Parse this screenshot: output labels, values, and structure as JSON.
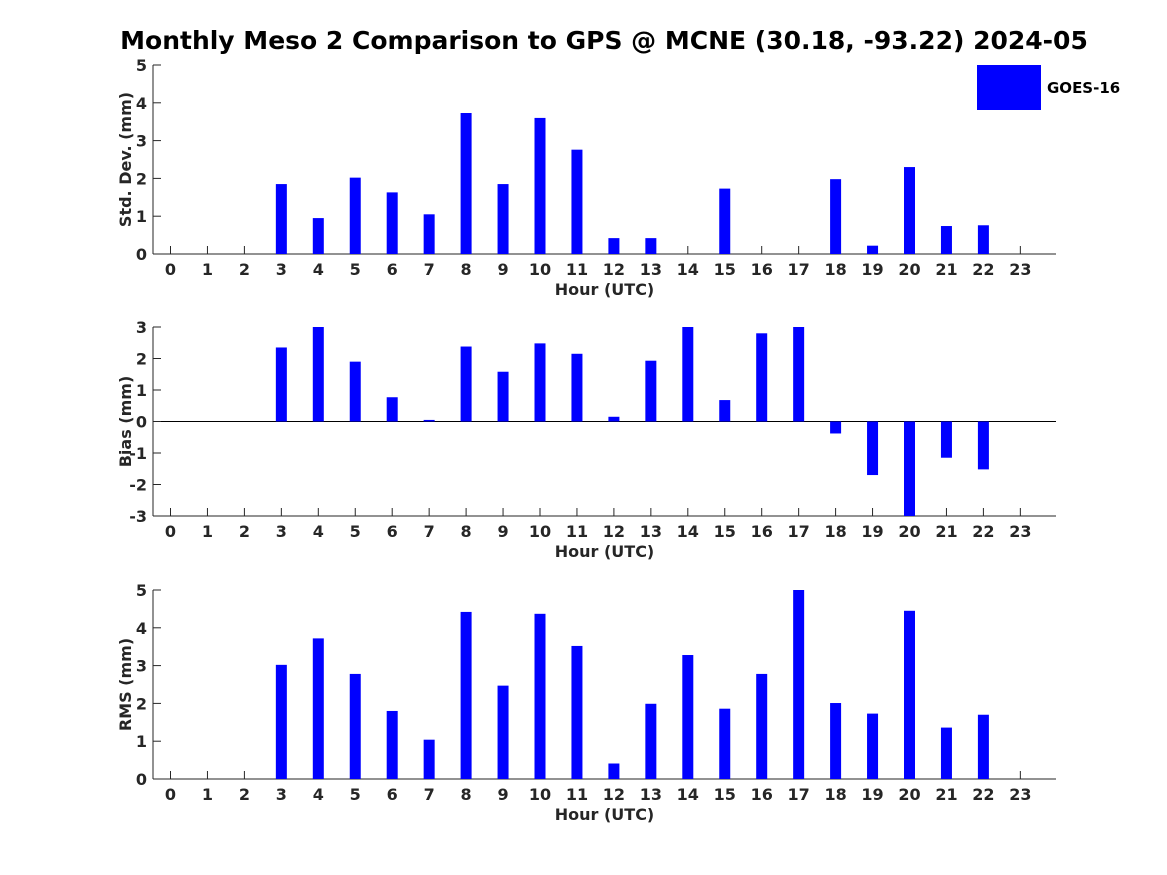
{
  "title": "Monthly Meso 2 Comparison to GPS @ MCNE (30.18, -93.22) 2024-05",
  "legend": {
    "label": "GOES-16",
    "color": "#0000ff"
  },
  "chart_data": [
    {
      "type": "bar",
      "xlabel": "Hour (UTC)",
      "ylabel": "Std. Dev. (mm)",
      "ylim": [
        0,
        5
      ],
      "yticks": [
        "0",
        "1",
        "2",
        "3",
        "4",
        "5"
      ],
      "categories": [
        "0",
        "1",
        "2",
        "3",
        "4",
        "5",
        "6",
        "7",
        "8",
        "9",
        "10",
        "11",
        "12",
        "13",
        "14",
        "15",
        "16",
        "17",
        "18",
        "19",
        "20",
        "21",
        "22",
        "23"
      ],
      "series": [
        {
          "name": "GOES-16",
          "values": [
            null,
            null,
            null,
            1.85,
            0.95,
            2.02,
            1.63,
            1.05,
            3.73,
            1.85,
            3.6,
            2.76,
            0.42,
            0.42,
            null,
            1.73,
            null,
            null,
            1.98,
            0.22,
            2.3,
            0.74,
            0.76,
            null
          ]
        }
      ]
    },
    {
      "type": "bar",
      "xlabel": "Hour (UTC)",
      "ylabel": "Bias (mm)",
      "ylim": [
        -3,
        3
      ],
      "yticks": [
        "-3",
        "-2",
        "-1",
        "0",
        "1",
        "2",
        "3"
      ],
      "categories": [
        "0",
        "1",
        "2",
        "3",
        "4",
        "5",
        "6",
        "7",
        "8",
        "9",
        "10",
        "11",
        "12",
        "13",
        "14",
        "15",
        "16",
        "17",
        "18",
        "19",
        "20",
        "21",
        "22",
        "23"
      ],
      "series": [
        {
          "name": "GOES-16",
          "values": [
            null,
            null,
            null,
            2.35,
            3.0,
            1.9,
            0.77,
            0.05,
            2.38,
            1.58,
            2.48,
            2.15,
            0.15,
            1.93,
            3.0,
            0.68,
            2.8,
            3.0,
            -0.38,
            -1.7,
            -3.0,
            -1.15,
            -1.52,
            null
          ]
        }
      ]
    },
    {
      "type": "bar",
      "xlabel": "Hour (UTC)",
      "ylabel": "RMS (mm)",
      "ylim": [
        0,
        5
      ],
      "yticks": [
        "0",
        "1",
        "2",
        "3",
        "4",
        "5"
      ],
      "categories": [
        "0",
        "1",
        "2",
        "3",
        "4",
        "5",
        "6",
        "7",
        "8",
        "9",
        "10",
        "11",
        "12",
        "13",
        "14",
        "15",
        "16",
        "17",
        "18",
        "19",
        "20",
        "21",
        "22",
        "23"
      ],
      "series": [
        {
          "name": "GOES-16",
          "values": [
            null,
            null,
            null,
            3.02,
            3.72,
            2.78,
            1.8,
            1.04,
            4.42,
            2.47,
            4.37,
            3.52,
            0.41,
            1.99,
            3.28,
            1.86,
            2.78,
            5.0,
            2.01,
            1.73,
            4.45,
            1.36,
            1.7,
            null
          ]
        }
      ]
    }
  ]
}
